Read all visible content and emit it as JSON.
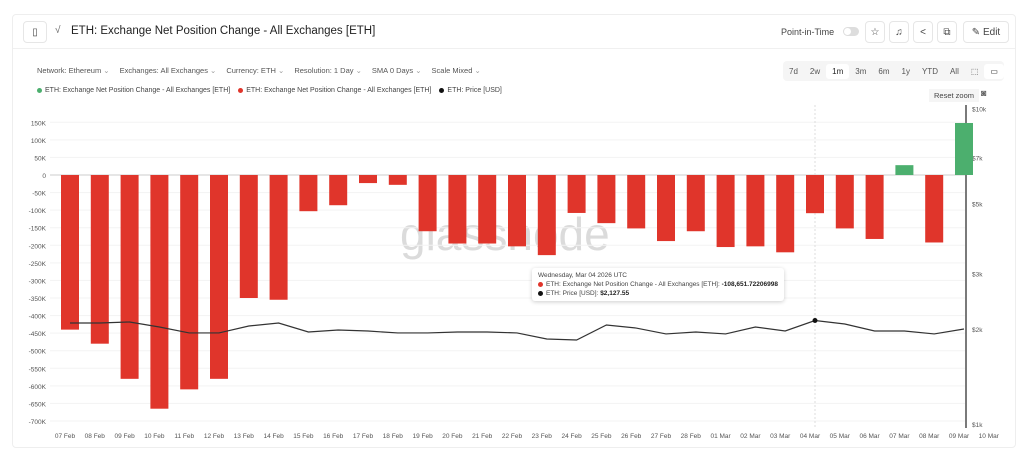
{
  "header": {
    "title": "ETH: Exchange Net Position Change - All Exchanges [ETH]",
    "point_in_time": "Point-in-Time",
    "edit": "Edit"
  },
  "filters": [
    "Network: Ethereum",
    "Exchanges: All Exchanges",
    "Currency: ETH",
    "Resolution: 1 Day",
    "SMA 0 Days",
    "Scale Mixed"
  ],
  "ranges": [
    "7d",
    "2w",
    "1m",
    "3m",
    "6m",
    "1y",
    "YTD",
    "All"
  ],
  "active_range": "1m",
  "reset_zoom": "Reset zoom",
  "watermark": "glassnode",
  "tooltip": {
    "date": "Wednesday, Mar 04 2026 UTC",
    "s1": "ETH: Exchange Net Position Change - All Exchanges [ETH]:",
    "v1": "-108,651.72206998",
    "s2": "ETH: Price [USD]:",
    "v2": "$2,127.55"
  },
  "colors": {
    "positive": "#4caf6e",
    "negative": "#e0352b",
    "price": "#333333"
  },
  "chart_data": {
    "type": "bar",
    "title": "ETH: Exchange Net Position Change - All Exchanges [ETH]",
    "legend": [
      "ETH: Exchange Net Position Change - All Exchanges [ETH]",
      "ETH: Exchange Net Position Change - All Exchanges [ETH]",
      "ETH: Price [USD]"
    ],
    "categories": [
      "07 Feb",
      "08 Feb",
      "09 Feb",
      "10 Feb",
      "11 Feb",
      "12 Feb",
      "13 Feb",
      "14 Feb",
      "15 Feb",
      "16 Feb",
      "17 Feb",
      "18 Feb",
      "19 Feb",
      "20 Feb",
      "21 Feb",
      "22 Feb",
      "23 Feb",
      "24 Feb",
      "25 Feb",
      "26 Feb",
      "27 Feb",
      "28 Feb",
      "01 Mar",
      "02 Mar",
      "03 Mar",
      "04 Mar",
      "05 Mar",
      "06 Mar",
      "07 Mar",
      "08 Mar",
      "09 Mar",
      "10 Mar"
    ],
    "series": [
      {
        "name": "Net Position Change (ETH)",
        "values": [
          -440000,
          -480000,
          -580000,
          -665000,
          -610000,
          -580000,
          -350000,
          -355000,
          -103000,
          -86000,
          -23000,
          -28000,
          -160000,
          -195000,
          -195000,
          -203000,
          -228000,
          -108000,
          -137000,
          -152000,
          -188000,
          -160000,
          -205000,
          -203000,
          -220000,
          -108651.72,
          -152000,
          -182000,
          28000,
          -192000,
          148000,
          null
        ]
      },
      {
        "name": "ETH: Price [USD]",
        "axis": "right",
        "values": [
          2089,
          2089,
          2105,
          2029,
          1943,
          1943,
          2044,
          2089,
          1957,
          1985,
          1971,
          1943,
          1943,
          1957,
          1957,
          1943,
          1859,
          1846,
          2059,
          2014,
          1929,
          1957,
          1929,
          2029,
          1971,
          2127.55,
          2074,
          1971,
          1971,
          1929,
          2000,
          null
        ]
      }
    ],
    "yticks": [
      "150K",
      "100K",
      "50K",
      "0",
      "-50K",
      "-100K",
      "-150K",
      "-200K",
      "-250K",
      "-300K",
      "-350K",
      "-400K",
      "-450K",
      "-500K",
      "-550K",
      "-600K",
      "-650K",
      "-700K"
    ],
    "ylim": [
      -700000,
      150000
    ],
    "y2ticks": [
      "$10k",
      "$7k",
      "$5k",
      "$3k",
      "$2k",
      "$1k"
    ],
    "y2lim": [
      1000,
      10000
    ],
    "y2scale": "log"
  }
}
